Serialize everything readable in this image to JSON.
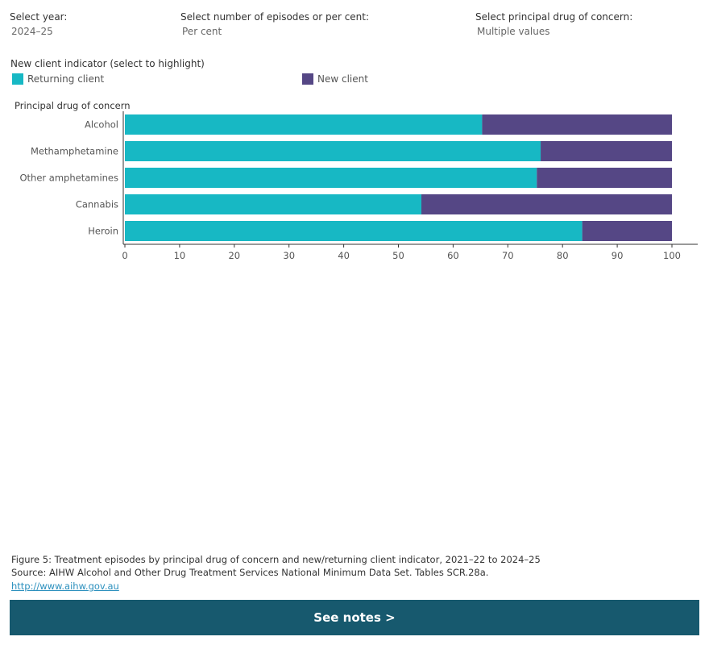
{
  "filters": {
    "year": {
      "label": "Select year:",
      "value": "2024–25"
    },
    "measure": {
      "label": "Select number of episodes or per cent:",
      "value": "Per cent"
    },
    "drug": {
      "label": "Select principal drug of concern:",
      "value": "Multiple values"
    }
  },
  "legend": {
    "title": "New client indicator (select to highlight)",
    "items": [
      {
        "label": "Returning client",
        "color": "#17b8c4"
      },
      {
        "label": "New client",
        "color": "#554785"
      }
    ]
  },
  "chart_data": {
    "type": "bar",
    "orientation": "horizontal",
    "stacked": true,
    "ylabel": "Principal drug of concern",
    "xlabel": "",
    "categories": [
      "Alcohol",
      "Methamphetamine",
      "Other amphetamines",
      "Cannabis",
      "Heroin"
    ],
    "series": [
      {
        "name": "Returning client",
        "color": "#17b8c4",
        "values": [
          65.3,
          76.0,
          75.3,
          54.2,
          83.6
        ]
      },
      {
        "name": "New client",
        "color": "#554785",
        "values": [
          34.7,
          24.0,
          24.7,
          45.8,
          16.4
        ]
      }
    ],
    "xlim": [
      0,
      100
    ],
    "xticks": [
      "0",
      "10",
      "20",
      "30",
      "40",
      "50",
      "60",
      "70",
      "80",
      "90",
      "100"
    ],
    "grid": false
  },
  "footer": {
    "caption": "Figure 5: Treatment episodes by principal drug of concern and new/returning client indicator, 2021–22 to 2024–25",
    "source": "Source: AIHW Alcohol and Other Drug Treatment Services National Minimum Data Set. Tables SCR.28a.",
    "link": "http://www.aihw.gov.au",
    "notes_button": "See notes >"
  }
}
